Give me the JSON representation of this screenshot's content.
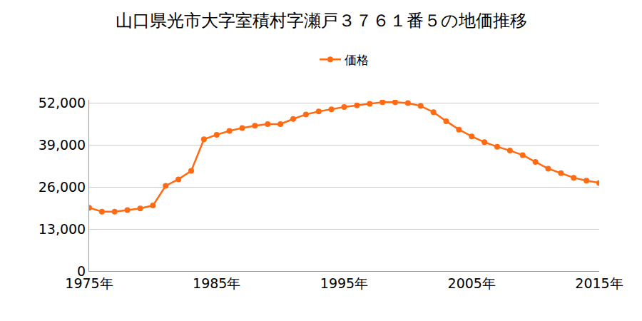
{
  "chart_data": {
    "type": "line",
    "title": "山口県光市大字室積村字瀬戸３７６１番５の地価推移",
    "x": [
      1975,
      1976,
      1977,
      1978,
      1979,
      1980,
      1981,
      1982,
      1983,
      1984,
      1985,
      1986,
      1987,
      1988,
      1989,
      1990,
      1991,
      1992,
      1993,
      1994,
      1995,
      1996,
      1997,
      1998,
      1999,
      2000,
      2001,
      2002,
      2003,
      2004,
      2005,
      2006,
      2007,
      2008,
      2009,
      2010,
      2011,
      2012,
      2013,
      2014,
      2015
    ],
    "series": [
      {
        "name": "価格",
        "color": "#ff6a13",
        "marker": "circle",
        "line_style": "solid",
        "values": [
          19600,
          18400,
          18400,
          18900,
          19400,
          20300,
          26400,
          28400,
          31000,
          40800,
          42200,
          43400,
          44300,
          45000,
          45500,
          45500,
          47100,
          48500,
          49400,
          50100,
          50800,
          51300,
          51800,
          52300,
          52300,
          52000,
          51100,
          49200,
          46400,
          43800,
          41700,
          39900,
          38500,
          37300,
          35900,
          33800,
          31700,
          30300,
          28900,
          28000,
          27300
        ]
      }
    ],
    "xlim": [
      1975,
      2015
    ],
    "xticks": [
      {
        "value": 1975,
        "label": "1975年"
      },
      {
        "value": 1985,
        "label": "1985年"
      },
      {
        "value": 1995,
        "label": "1995年"
      },
      {
        "value": 2005,
        "label": "2005年"
      },
      {
        "value": 2015,
        "label": "2015年"
      }
    ],
    "ylim": [
      0,
      53000
    ],
    "yticks": [
      0,
      {
        "value": 13000,
        "label": "13,000"
      },
      {
        "value": 26000,
        "label": "26,000"
      },
      {
        "value": 39000,
        "label": "39,000"
      },
      {
        "value": 52000,
        "label": "52,000"
      }
    ],
    "grid": true,
    "legend": "top"
  }
}
